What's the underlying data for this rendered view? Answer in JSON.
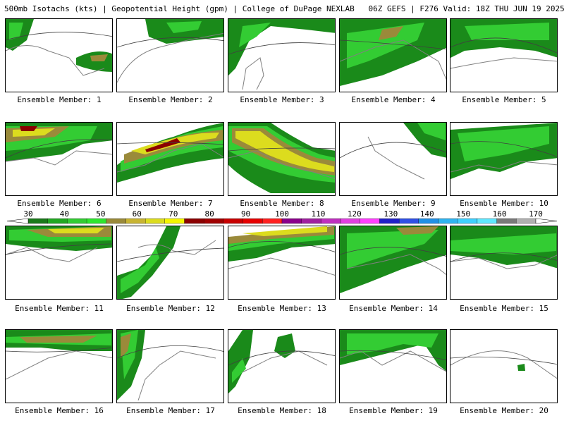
{
  "title": "500mb Isotachs (kts) | Geopotential Height (gpm) | College of DuPage NEXLAB   06Z GEFS | F276 Valid: 18Z THU JUN 19 2025",
  "member_label_prefix": "Ensemble Member: ",
  "members": [
    {
      "id": "1"
    },
    {
      "id": "2"
    },
    {
      "id": "3"
    },
    {
      "id": "4"
    },
    {
      "id": "5"
    },
    {
      "id": "6"
    },
    {
      "id": "7"
    },
    {
      "id": "8"
    },
    {
      "id": "9"
    },
    {
      "id": "10"
    },
    {
      "id": "11"
    },
    {
      "id": "12"
    },
    {
      "id": "13"
    },
    {
      "id": "14"
    },
    {
      "id": "15"
    },
    {
      "id": "16"
    },
    {
      "id": "17"
    },
    {
      "id": "18"
    },
    {
      "id": "19"
    },
    {
      "id": "20"
    }
  ],
  "colorbar": {
    "tick_labels": [
      "30",
      "40",
      "50",
      "60",
      "70",
      "80",
      "90",
      "100",
      "110",
      "120",
      "130",
      "140",
      "150",
      "160",
      "170"
    ],
    "colors": [
      "#1a7a1a",
      "#22a822",
      "#33cc33",
      "#2ee62e",
      "#9a8a3a",
      "#c8b432",
      "#dcdc1e",
      "#f5f500",
      "#8b0000",
      "#a00000",
      "#c80000",
      "#e60000",
      "#ff2020",
      "#8b008b",
      "#a020a0",
      "#c030c0",
      "#e040e0",
      "#ff40ff",
      "#2020c8",
      "#3050e6",
      "#2090e6",
      "#30b4f0",
      "#40d0ff",
      "#60e8ff",
      "#7a7a7a",
      "#b0b0b0"
    ]
  },
  "colors": {
    "wind_30": "#1a8a1a",
    "wind_40": "#33cc33",
    "wind_50": "#9a8a3a",
    "wind_60": "#dcdc1e",
    "wind_70": "#8b0000",
    "coast": "#808080",
    "height_contour": "#404040"
  }
}
